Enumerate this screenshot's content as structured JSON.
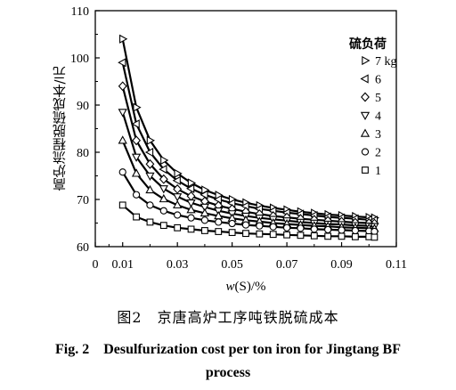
{
  "chart_data": {
    "type": "line",
    "xlabel_var": "w",
    "xlabel_rest": "(S)/%",
    "ylabel": "高炉流程脱硫成本/元",
    "xlim": [
      0,
      0.11
    ],
    "ylim": [
      60,
      110
    ],
    "xticks": [
      "0",
      "0.01",
      "0.03",
      "0.05",
      "0.07",
      "0.09",
      "0.11"
    ],
    "xtick_values": [
      0,
      0.01,
      0.03,
      0.05,
      0.07,
      0.09,
      0.11
    ],
    "yticks": [
      "60",
      "70",
      "80",
      "90",
      "100",
      "110"
    ],
    "ytick_values": [
      60,
      70,
      80,
      90,
      100,
      110
    ],
    "legend_title": "硫负荷",
    "legend_placement": "top-right",
    "series": [
      {
        "name": "7 kg",
        "marker": "triangle-right",
        "x": [
          0.01,
          0.015,
          0.02,
          0.025,
          0.03,
          0.035,
          0.04,
          0.045,
          0.05,
          0.055,
          0.06,
          0.065,
          0.07,
          0.075,
          0.08,
          0.085,
          0.09,
          0.095,
          0.1,
          0.102
        ],
        "y": [
          104,
          89.5,
          82.5,
          78.3,
          75.5,
          73.5,
          72,
          70.9,
          70,
          69.3,
          68.7,
          68.2,
          67.8,
          67.4,
          67.1,
          66.8,
          66.6,
          66.4,
          66.2,
          66.1
        ]
      },
      {
        "name": "6",
        "marker": "triangle-left",
        "x": [
          0.01,
          0.015,
          0.02,
          0.025,
          0.03,
          0.035,
          0.04,
          0.045,
          0.05,
          0.055,
          0.06,
          0.065,
          0.07,
          0.075,
          0.08,
          0.085,
          0.09,
          0.095,
          0.1,
          0.102
        ],
        "y": [
          99,
          86,
          80,
          76.4,
          74,
          72.3,
          71,
          70,
          69.2,
          68.6,
          68,
          67.6,
          67.2,
          66.9,
          66.6,
          66.3,
          66.1,
          65.9,
          65.7,
          65.6
        ]
      },
      {
        "name": "5",
        "marker": "diamond",
        "x": [
          0.01,
          0.015,
          0.02,
          0.025,
          0.03,
          0.035,
          0.04,
          0.045,
          0.05,
          0.055,
          0.06,
          0.065,
          0.07,
          0.075,
          0.08,
          0.085,
          0.09,
          0.095,
          0.1,
          0.102
        ],
        "y": [
          94,
          82.5,
          77.5,
          74.3,
          72.2,
          70.7,
          69.6,
          68.7,
          68,
          67.4,
          66.9,
          66.5,
          66.2,
          65.9,
          65.7,
          65.5,
          65.3,
          65.1,
          65,
          64.9
        ]
      },
      {
        "name": "4",
        "marker": "triangle-down",
        "x": [
          0.01,
          0.015,
          0.02,
          0.025,
          0.03,
          0.035,
          0.04,
          0.045,
          0.05,
          0.055,
          0.06,
          0.065,
          0.07,
          0.075,
          0.08,
          0.085,
          0.09,
          0.095,
          0.1,
          0.102
        ],
        "y": [
          88.5,
          79,
          75,
          72.3,
          70.6,
          69.3,
          68.4,
          67.6,
          67,
          66.5,
          66.1,
          65.8,
          65.5,
          65.2,
          65,
          64.8,
          64.7,
          64.5,
          64.4,
          64.3
        ]
      },
      {
        "name": "3",
        "marker": "triangle-up",
        "x": [
          0.01,
          0.015,
          0.02,
          0.025,
          0.03,
          0.035,
          0.04,
          0.045,
          0.05,
          0.055,
          0.06,
          0.065,
          0.07,
          0.075,
          0.08,
          0.085,
          0.09,
          0.095,
          0.1,
          0.102
        ],
        "y": [
          82.5,
          75.5,
          72,
          70.1,
          68.8,
          67.8,
          67.1,
          66.5,
          66,
          65.6,
          65.3,
          65,
          64.8,
          64.6,
          64.4,
          64.3,
          64.1,
          64,
          63.9,
          63.8
        ]
      },
      {
        "name": "2",
        "marker": "circle",
        "x": [
          0.01,
          0.015,
          0.02,
          0.025,
          0.03,
          0.035,
          0.04,
          0.045,
          0.05,
          0.055,
          0.06,
          0.065,
          0.07,
          0.075,
          0.08,
          0.085,
          0.09,
          0.095,
          0.1,
          0.102
        ],
        "y": [
          75.8,
          71,
          68.8,
          67.6,
          66.7,
          66.1,
          65.6,
          65.2,
          64.9,
          64.6,
          64.4,
          64.2,
          64,
          63.9,
          63.7,
          63.6,
          63.5,
          63.4,
          63.3,
          63.2
        ]
      },
      {
        "name": "1",
        "marker": "square",
        "x": [
          0.01,
          0.015,
          0.02,
          0.025,
          0.03,
          0.035,
          0.04,
          0.045,
          0.05,
          0.055,
          0.06,
          0.065,
          0.07,
          0.075,
          0.08,
          0.085,
          0.09,
          0.095,
          0.1,
          0.102
        ],
        "y": [
          68.8,
          66.3,
          65.2,
          64.5,
          64,
          63.7,
          63.4,
          63.2,
          63,
          62.8,
          62.7,
          62.6,
          62.5,
          62.4,
          62.3,
          62.2,
          62.2,
          62.1,
          62.1,
          62
        ]
      }
    ]
  },
  "caption": {
    "cn": "图2　京唐高炉工序吨铁脱硫成本",
    "en_line1": "Fig. 2　Desulfurization cost per ton iron for Jingtang BF",
    "en_line2": "process"
  }
}
